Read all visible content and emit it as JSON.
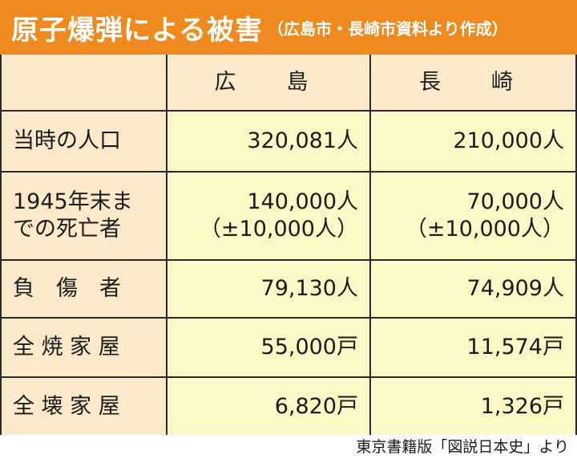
{
  "title": {
    "main": "原子爆弾による被害",
    "sub": "（広島市・長崎市資料より作成）"
  },
  "colors": {
    "title_bar": "#f08a1e",
    "label_bg": "#fbe9c9",
    "value_bg": "#fbf8c6",
    "border": "#2a2a2a"
  },
  "table": {
    "headers": [
      "",
      "広　島",
      "長　崎"
    ],
    "rows": [
      {
        "label": "当時の人口",
        "hiroshima": "320,081人",
        "nagasaki": "210,000人"
      },
      {
        "label_line1": "1945年末ま",
        "label_line2": "での死亡者",
        "hiroshima_line1": "140,000人",
        "hiroshima_line2": "（±10,000人）",
        "nagasaki_line1": "70,000人",
        "nagasaki_line2": "（±10,000人）"
      },
      {
        "label": "負　傷　者",
        "hiroshima": "79,130人",
        "nagasaki": "74,909人"
      },
      {
        "label": "全 焼 家 屋",
        "hiroshima": "55,000戸",
        "nagasaki": "11,574戸"
      },
      {
        "label": "全 壊 家 屋",
        "hiroshima": "6,820戸",
        "nagasaki": "1,326戸"
      }
    ]
  },
  "source": "東京書籍版「図説日本史」より"
}
